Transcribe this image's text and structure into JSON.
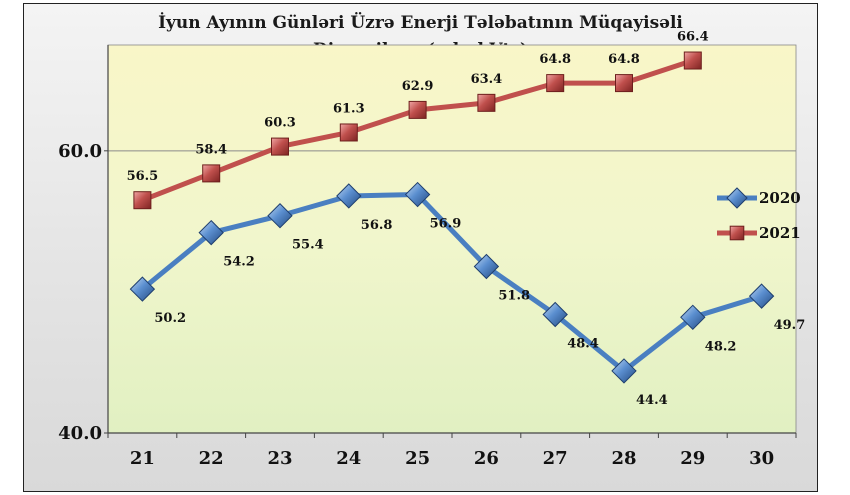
{
  "chart_data": {
    "type": "line",
    "title_lines": [
      "İyun Ayının Günləri Üzrə Enerji Tələbatının Müqayisəli",
      "Dinamikası (mln kVts)"
    ],
    "categories": [
      "21",
      "22",
      "23",
      "24",
      "25",
      "26",
      "27",
      "28",
      "29",
      "30"
    ],
    "y_ticks": [
      "40.0",
      "60.0"
    ],
    "ylim": [
      40,
      67.5
    ],
    "grid": "horizontal line at 60",
    "legend_position": "right",
    "series": [
      {
        "name": "2020",
        "color": "#4a7fc1",
        "marker": "diamond",
        "values": [
          50.2,
          54.2,
          55.4,
          56.8,
          56.9,
          51.8,
          48.4,
          44.4,
          48.2,
          49.7
        ],
        "labels": [
          "50.2",
          "54.2",
          "55.4",
          "56.8",
          "56.9",
          "51.8",
          "48.4",
          "44.4",
          "48.2",
          "49.7"
        ]
      },
      {
        "name": "2021",
        "color": "#c0504d",
        "marker": "square",
        "values": [
          56.5,
          58.4,
          60.3,
          61.3,
          62.9,
          63.4,
          64.8,
          64.8,
          66.4,
          null
        ],
        "labels": [
          "56.5",
          "58.4",
          "60.3",
          "61.3",
          "62.9",
          "63.4",
          "64.8",
          "64.8",
          "66.4",
          null
        ]
      }
    ]
  }
}
